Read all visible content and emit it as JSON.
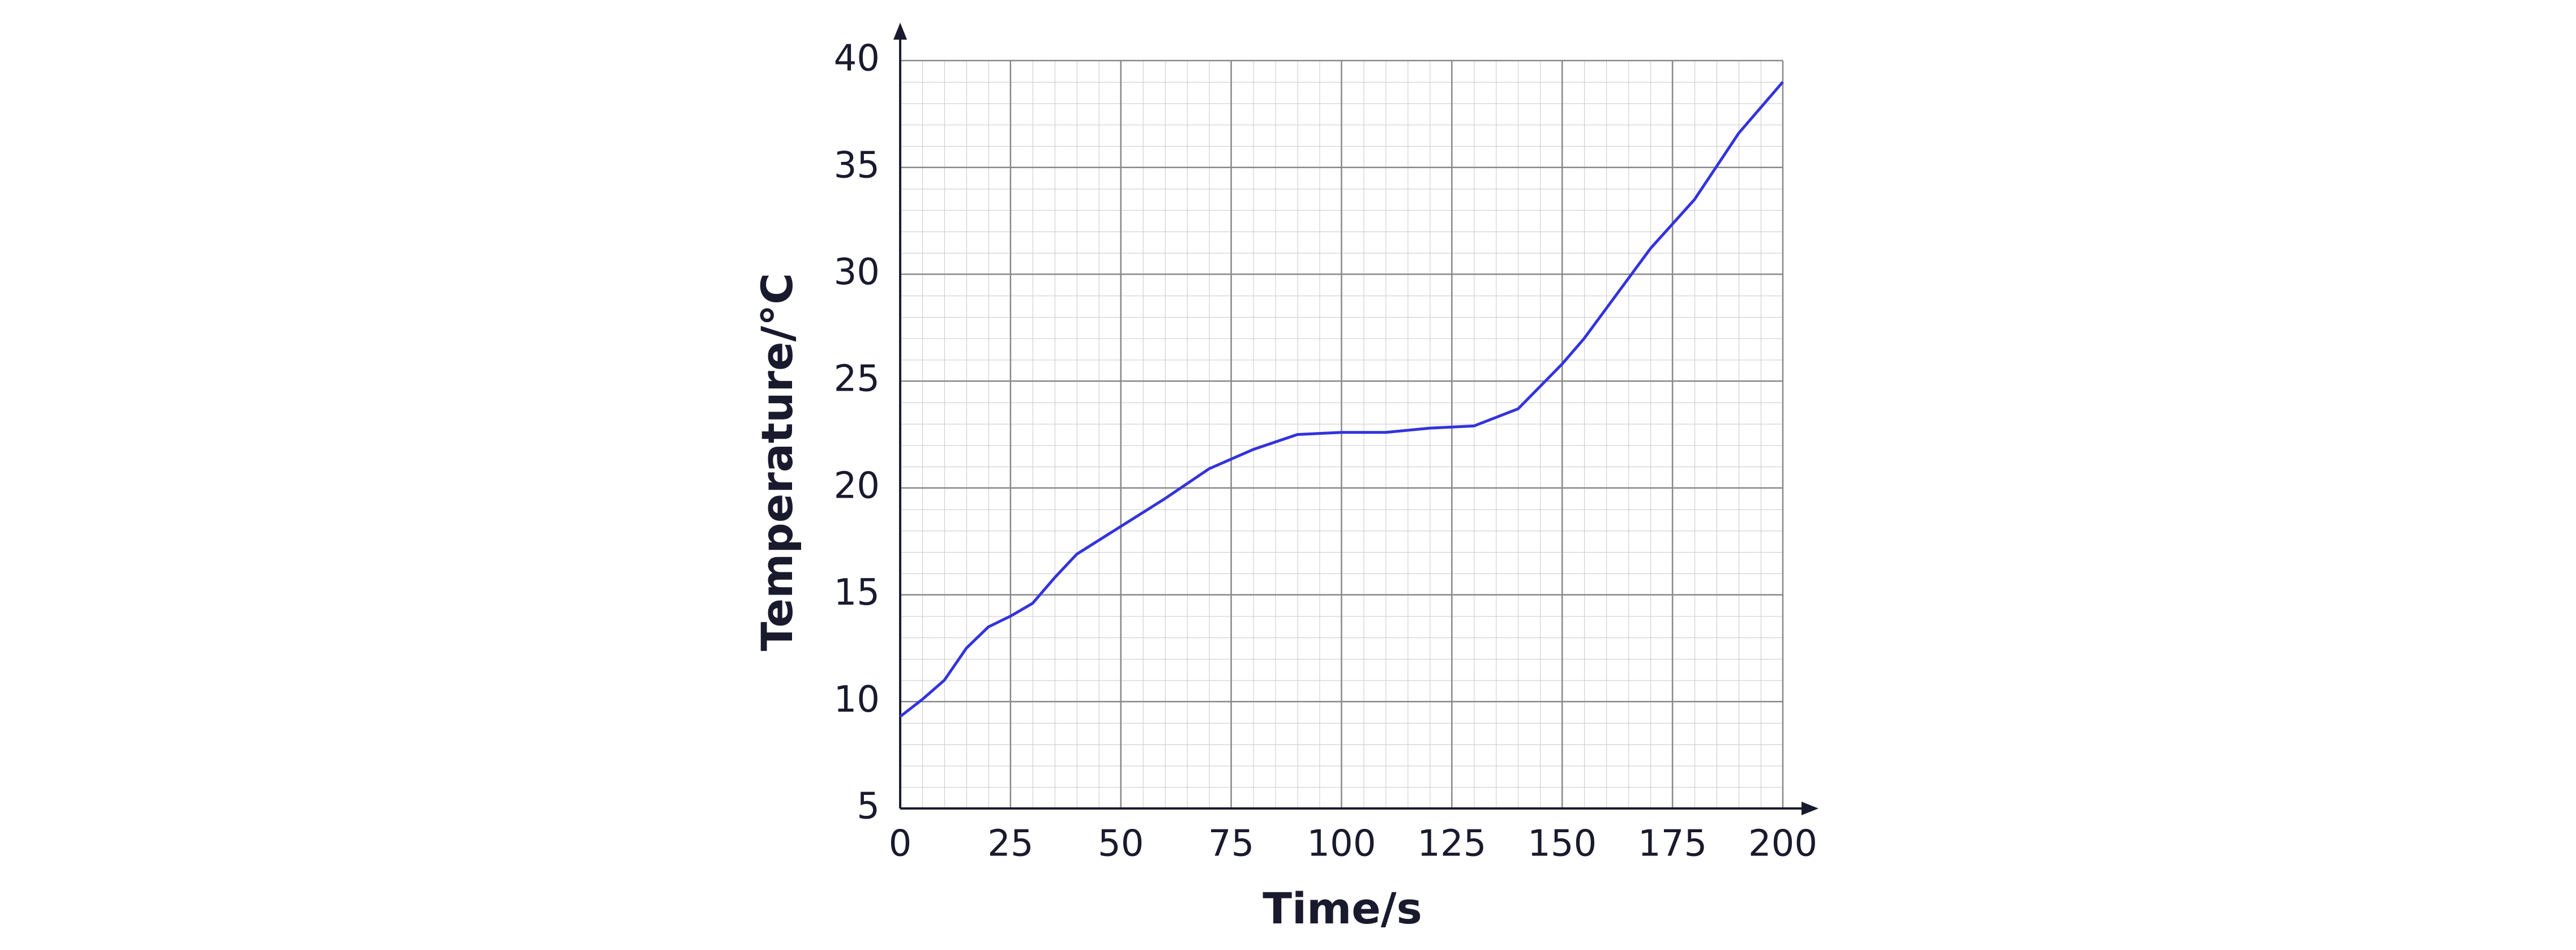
{
  "chart_data": {
    "type": "line",
    "x_label": "Time/s",
    "y_label": "Temperature/°C",
    "x": [
      0,
      5,
      10,
      15,
      20,
      25,
      30,
      35,
      40,
      50,
      60,
      70,
      80,
      90,
      100,
      110,
      120,
      130,
      140,
      150,
      155,
      160,
      170,
      180,
      190,
      200
    ],
    "series": [
      {
        "color": "#3333dd",
        "values": [
          9.3,
          10.1,
          11,
          12.5,
          13.5,
          14,
          14.6,
          15.8,
          16.9,
          18.2,
          19.5,
          20.9,
          21.8,
          22.5,
          22.6,
          22.6,
          22.8,
          22.9,
          23.7,
          25.8,
          27,
          28.4,
          31.2,
          33.5,
          36.6,
          39
        ]
      }
    ],
    "xlim": [
      0,
      200
    ],
    "xticks": [
      0,
      25,
      50,
      75,
      100,
      125,
      150,
      175,
      200
    ],
    "ylim": [
      5,
      40
    ],
    "yticks": [
      5,
      10,
      15,
      20,
      25,
      30,
      35,
      40
    ],
    "grid": true
  }
}
